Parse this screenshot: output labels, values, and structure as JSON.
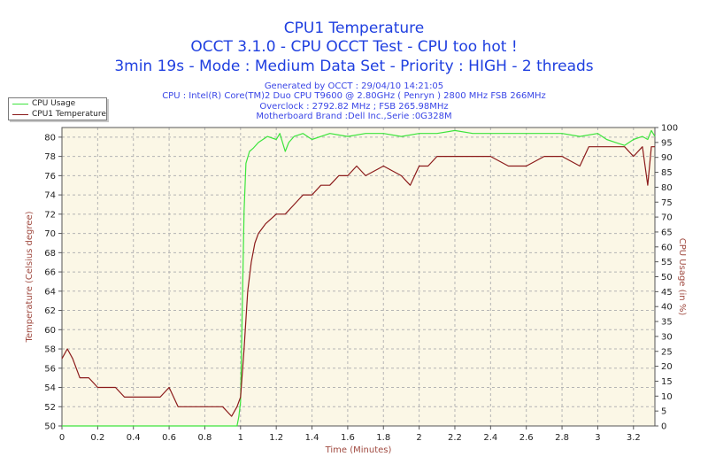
{
  "title": {
    "line1": "CPU1 Temperature",
    "line2": "OCCT 3.1.0 - CPU OCCT Test - CPU too hot !",
    "line3": "3min 19s - Mode : Medium Data Set - Priority : HIGH - 2 threads"
  },
  "info": {
    "generated": "Generated by OCCT : 29/04/10 14:21:05",
    "cpu": "CPU : Intel(R) Core(TM)2 Duo CPU T9600 @ 2.80GHz ( Penryn ) 2800 MHz FSB 266MHz",
    "overclock": "Overclock : 2792.82 MHz ; FSB 265.98MHz",
    "motherboard": "Motherboard Brand :Dell Inc.,Serie :0G328M"
  },
  "colors": {
    "plot_bg": "#fbf7e6",
    "grid": "#b4b4b4",
    "temperature": "#8b1a1a",
    "cpu_usage": "#3ce43c",
    "axis_text": "#222222",
    "axis_label": "#a04a40"
  },
  "chart_data": {
    "type": "line",
    "title": "CPU1 Temperature",
    "xlabel": "Time (Minutes)",
    "ylabel": "Temperature (Celsius degree)",
    "y2label": "CPU Usage (in %)",
    "xlim": [
      0,
      3.32
    ],
    "ylim": [
      50,
      81
    ],
    "y2lim": [
      0,
      100
    ],
    "x_ticks": [
      "0",
      "0.2",
      "0.4",
      "0.6",
      "0.8",
      "1",
      "1.2",
      "1.4",
      "1.6",
      "1.8",
      "2",
      "2.2",
      "2.4",
      "2.6",
      "2.8",
      "3",
      "3.2"
    ],
    "y_ticks": [
      "50",
      "52",
      "54",
      "56",
      "58",
      "60",
      "62",
      "64",
      "66",
      "68",
      "70",
      "72",
      "74",
      "76",
      "78",
      "80"
    ],
    "y2_ticks": [
      "0",
      "5",
      "10",
      "15",
      "20",
      "25",
      "30",
      "35",
      "40",
      "45",
      "50",
      "55",
      "60",
      "65",
      "70",
      "75",
      "80",
      "85",
      "90",
      "95",
      "100"
    ],
    "grid": true,
    "legend_position": "top-left",
    "series": [
      {
        "name": "CPU Usage",
        "axis": "right",
        "points": [
          [
            0,
            0
          ],
          [
            0.98,
            0
          ],
          [
            0.99,
            3
          ],
          [
            1.0,
            8
          ],
          [
            1.01,
            40
          ],
          [
            1.02,
            72
          ],
          [
            1.03,
            88
          ],
          [
            1.05,
            92
          ],
          [
            1.07,
            93
          ],
          [
            1.1,
            95
          ],
          [
            1.15,
            97
          ],
          [
            1.2,
            96
          ],
          [
            1.22,
            98
          ],
          [
            1.25,
            92
          ],
          [
            1.27,
            95
          ],
          [
            1.3,
            97
          ],
          [
            1.35,
            98
          ],
          [
            1.4,
            96
          ],
          [
            1.5,
            98
          ],
          [
            1.6,
            97
          ],
          [
            1.7,
            98
          ],
          [
            1.8,
            98
          ],
          [
            1.9,
            97
          ],
          [
            2.0,
            98
          ],
          [
            2.1,
            98
          ],
          [
            2.2,
            99
          ],
          [
            2.3,
            98
          ],
          [
            2.4,
            98
          ],
          [
            2.5,
            98
          ],
          [
            2.6,
            98
          ],
          [
            2.7,
            98
          ],
          [
            2.8,
            98
          ],
          [
            2.9,
            97
          ],
          [
            3.0,
            98
          ],
          [
            3.05,
            96
          ],
          [
            3.1,
            95
          ],
          [
            3.15,
            94
          ],
          [
            3.2,
            96
          ],
          [
            3.25,
            97
          ],
          [
            3.28,
            96
          ],
          [
            3.3,
            99
          ],
          [
            3.32,
            97
          ]
        ]
      },
      {
        "name": "CPU1 Temperature",
        "axis": "left",
        "points": [
          [
            0,
            57
          ],
          [
            0.03,
            58
          ],
          [
            0.06,
            57
          ],
          [
            0.1,
            55
          ],
          [
            0.15,
            55
          ],
          [
            0.2,
            54
          ],
          [
            0.25,
            54
          ],
          [
            0.3,
            54
          ],
          [
            0.35,
            53
          ],
          [
            0.4,
            53
          ],
          [
            0.45,
            53
          ],
          [
            0.5,
            53
          ],
          [
            0.55,
            53
          ],
          [
            0.6,
            54
          ],
          [
            0.65,
            52
          ],
          [
            0.7,
            52
          ],
          [
            0.75,
            52
          ],
          [
            0.8,
            52
          ],
          [
            0.85,
            52
          ],
          [
            0.9,
            52
          ],
          [
            0.95,
            51
          ],
          [
            0.98,
            52
          ],
          [
            1.0,
            53
          ],
          [
            1.02,
            58
          ],
          [
            1.04,
            64
          ],
          [
            1.06,
            67
          ],
          [
            1.08,
            69
          ],
          [
            1.1,
            70
          ],
          [
            1.14,
            71
          ],
          [
            1.2,
            72
          ],
          [
            1.25,
            72
          ],
          [
            1.3,
            73
          ],
          [
            1.35,
            74
          ],
          [
            1.4,
            74
          ],
          [
            1.45,
            75
          ],
          [
            1.5,
            75
          ],
          [
            1.55,
            76
          ],
          [
            1.6,
            76
          ],
          [
            1.65,
            77
          ],
          [
            1.7,
            76
          ],
          [
            1.8,
            77
          ],
          [
            1.9,
            76
          ],
          [
            1.95,
            75
          ],
          [
            2.0,
            77
          ],
          [
            2.05,
            77
          ],
          [
            2.1,
            78
          ],
          [
            2.2,
            78
          ],
          [
            2.3,
            78
          ],
          [
            2.4,
            78
          ],
          [
            2.5,
            77
          ],
          [
            2.6,
            77
          ],
          [
            2.7,
            78
          ],
          [
            2.8,
            78
          ],
          [
            2.9,
            77
          ],
          [
            2.95,
            79
          ],
          [
            3.0,
            79
          ],
          [
            3.05,
            79
          ],
          [
            3.1,
            79
          ],
          [
            3.15,
            79
          ],
          [
            3.2,
            78
          ],
          [
            3.25,
            79
          ],
          [
            3.28,
            75
          ],
          [
            3.3,
            79
          ],
          [
            3.32,
            79
          ]
        ]
      }
    ]
  }
}
